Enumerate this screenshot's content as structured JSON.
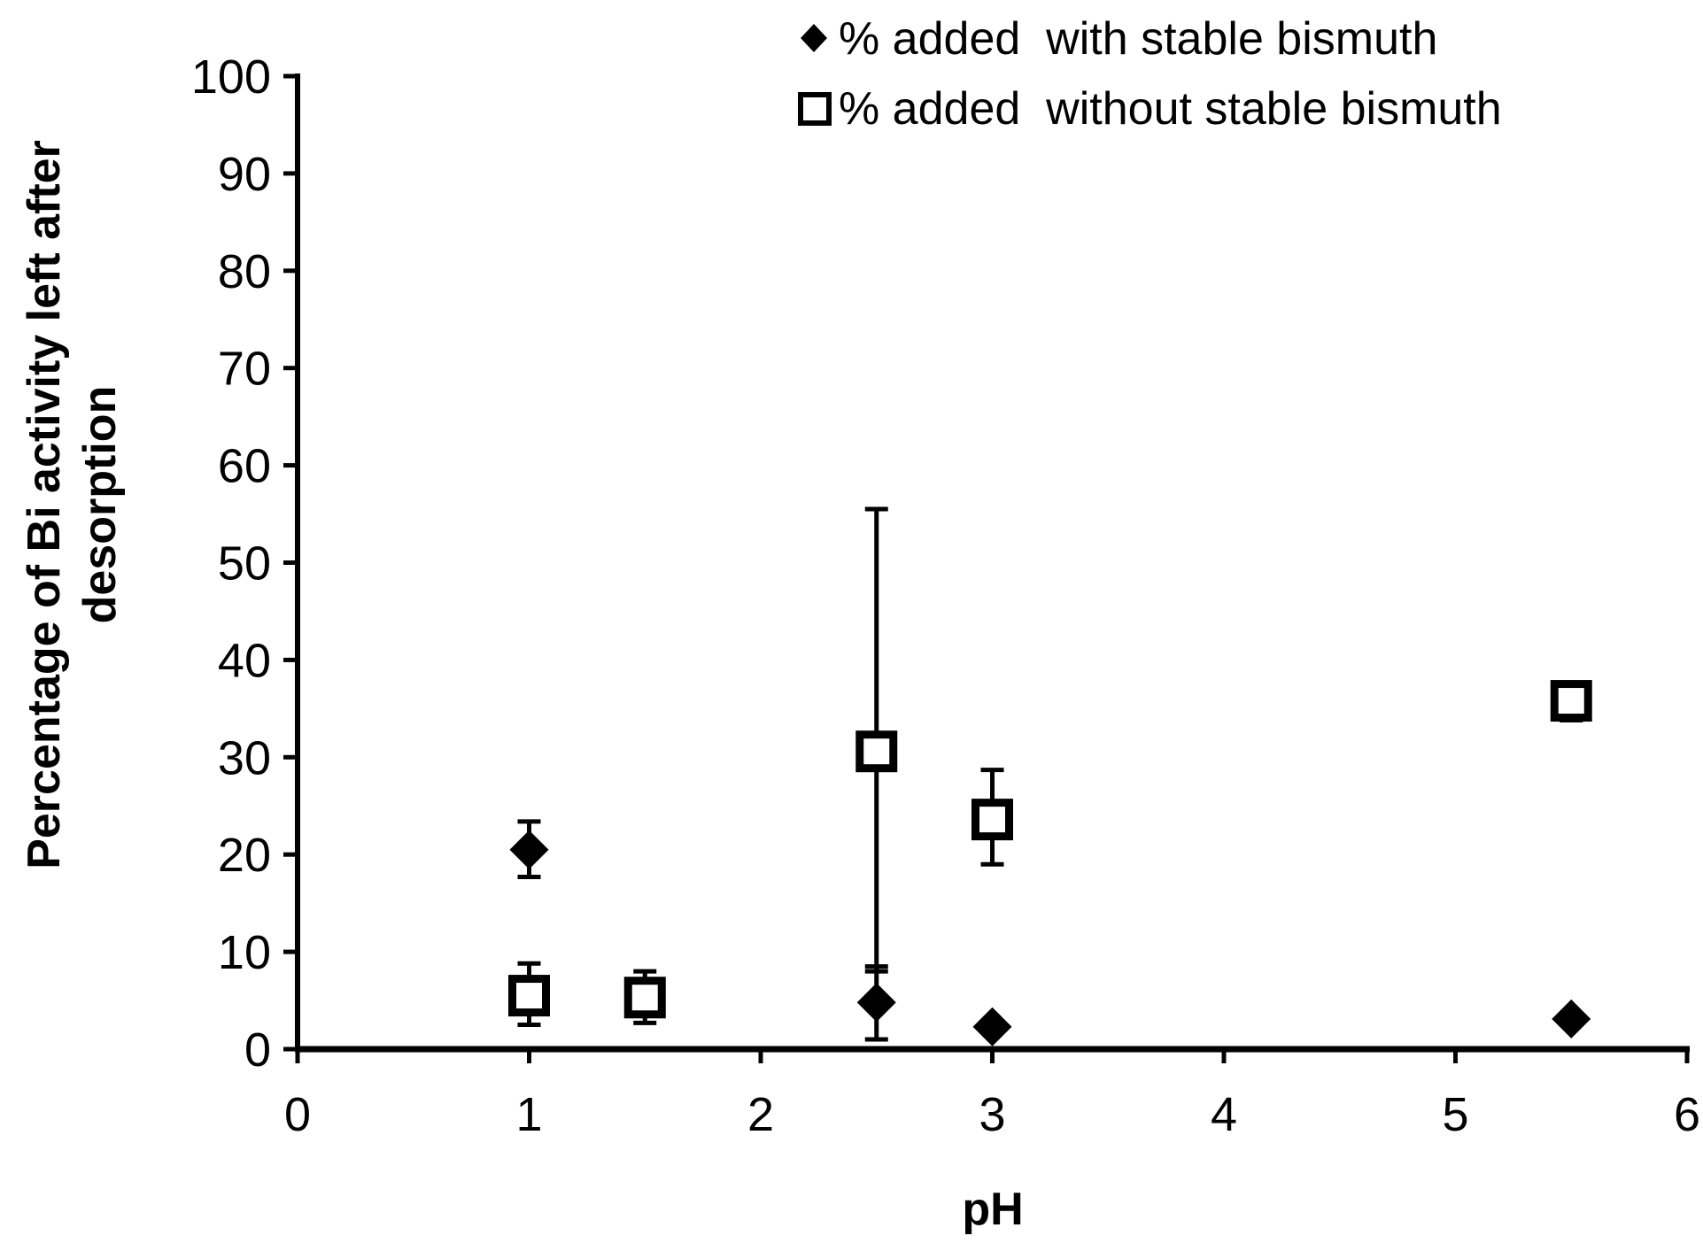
{
  "chart_data": {
    "type": "scatter",
    "xlabel": "pH",
    "ylabel_lines": [
      "Percentage of Bi activity left after",
      "desorption"
    ],
    "xlim": [
      0,
      6
    ],
    "ylim": [
      0,
      100
    ],
    "x_ticks": [
      0,
      1,
      2,
      3,
      4,
      5,
      6
    ],
    "y_ticks": [
      0,
      10,
      20,
      30,
      40,
      50,
      60,
      70,
      80,
      90,
      100
    ],
    "grid": false,
    "legend_position": "top-right",
    "series": [
      {
        "name": "% added  with stable bismuth",
        "marker": "filled-diamond",
        "color": "#000000",
        "points": [
          {
            "x": 1,
            "y": 20.5,
            "err_low": 17.7,
            "err_high": 23.4
          },
          {
            "x": 2.5,
            "y": 4.8,
            "err_low": 1.0,
            "err_high": 8.5
          },
          {
            "x": 3,
            "y": 2.3,
            "err_low": null,
            "err_high": null
          },
          {
            "x": 5.5,
            "y": 3.1,
            "err_low": null,
            "err_high": null
          }
        ]
      },
      {
        "name": "% added  without stable bismuth",
        "marker": "open-square",
        "color": "#000000",
        "points": [
          {
            "x": 1,
            "y": 5.5,
            "err_low": 2.5,
            "err_high": 8.8
          },
          {
            "x": 1.5,
            "y": 5.3,
            "err_low": 2.7,
            "err_high": 8.0
          },
          {
            "x": 2.5,
            "y": 30.6,
            "err_low": 8.0,
            "err_high": 55.5
          },
          {
            "x": 3,
            "y": 23.6,
            "err_low": 19.0,
            "err_high": 28.7
          },
          {
            "x": 5.5,
            "y": 35.8,
            "err_low": 33.8,
            "err_high": 37.6
          }
        ]
      }
    ]
  }
}
